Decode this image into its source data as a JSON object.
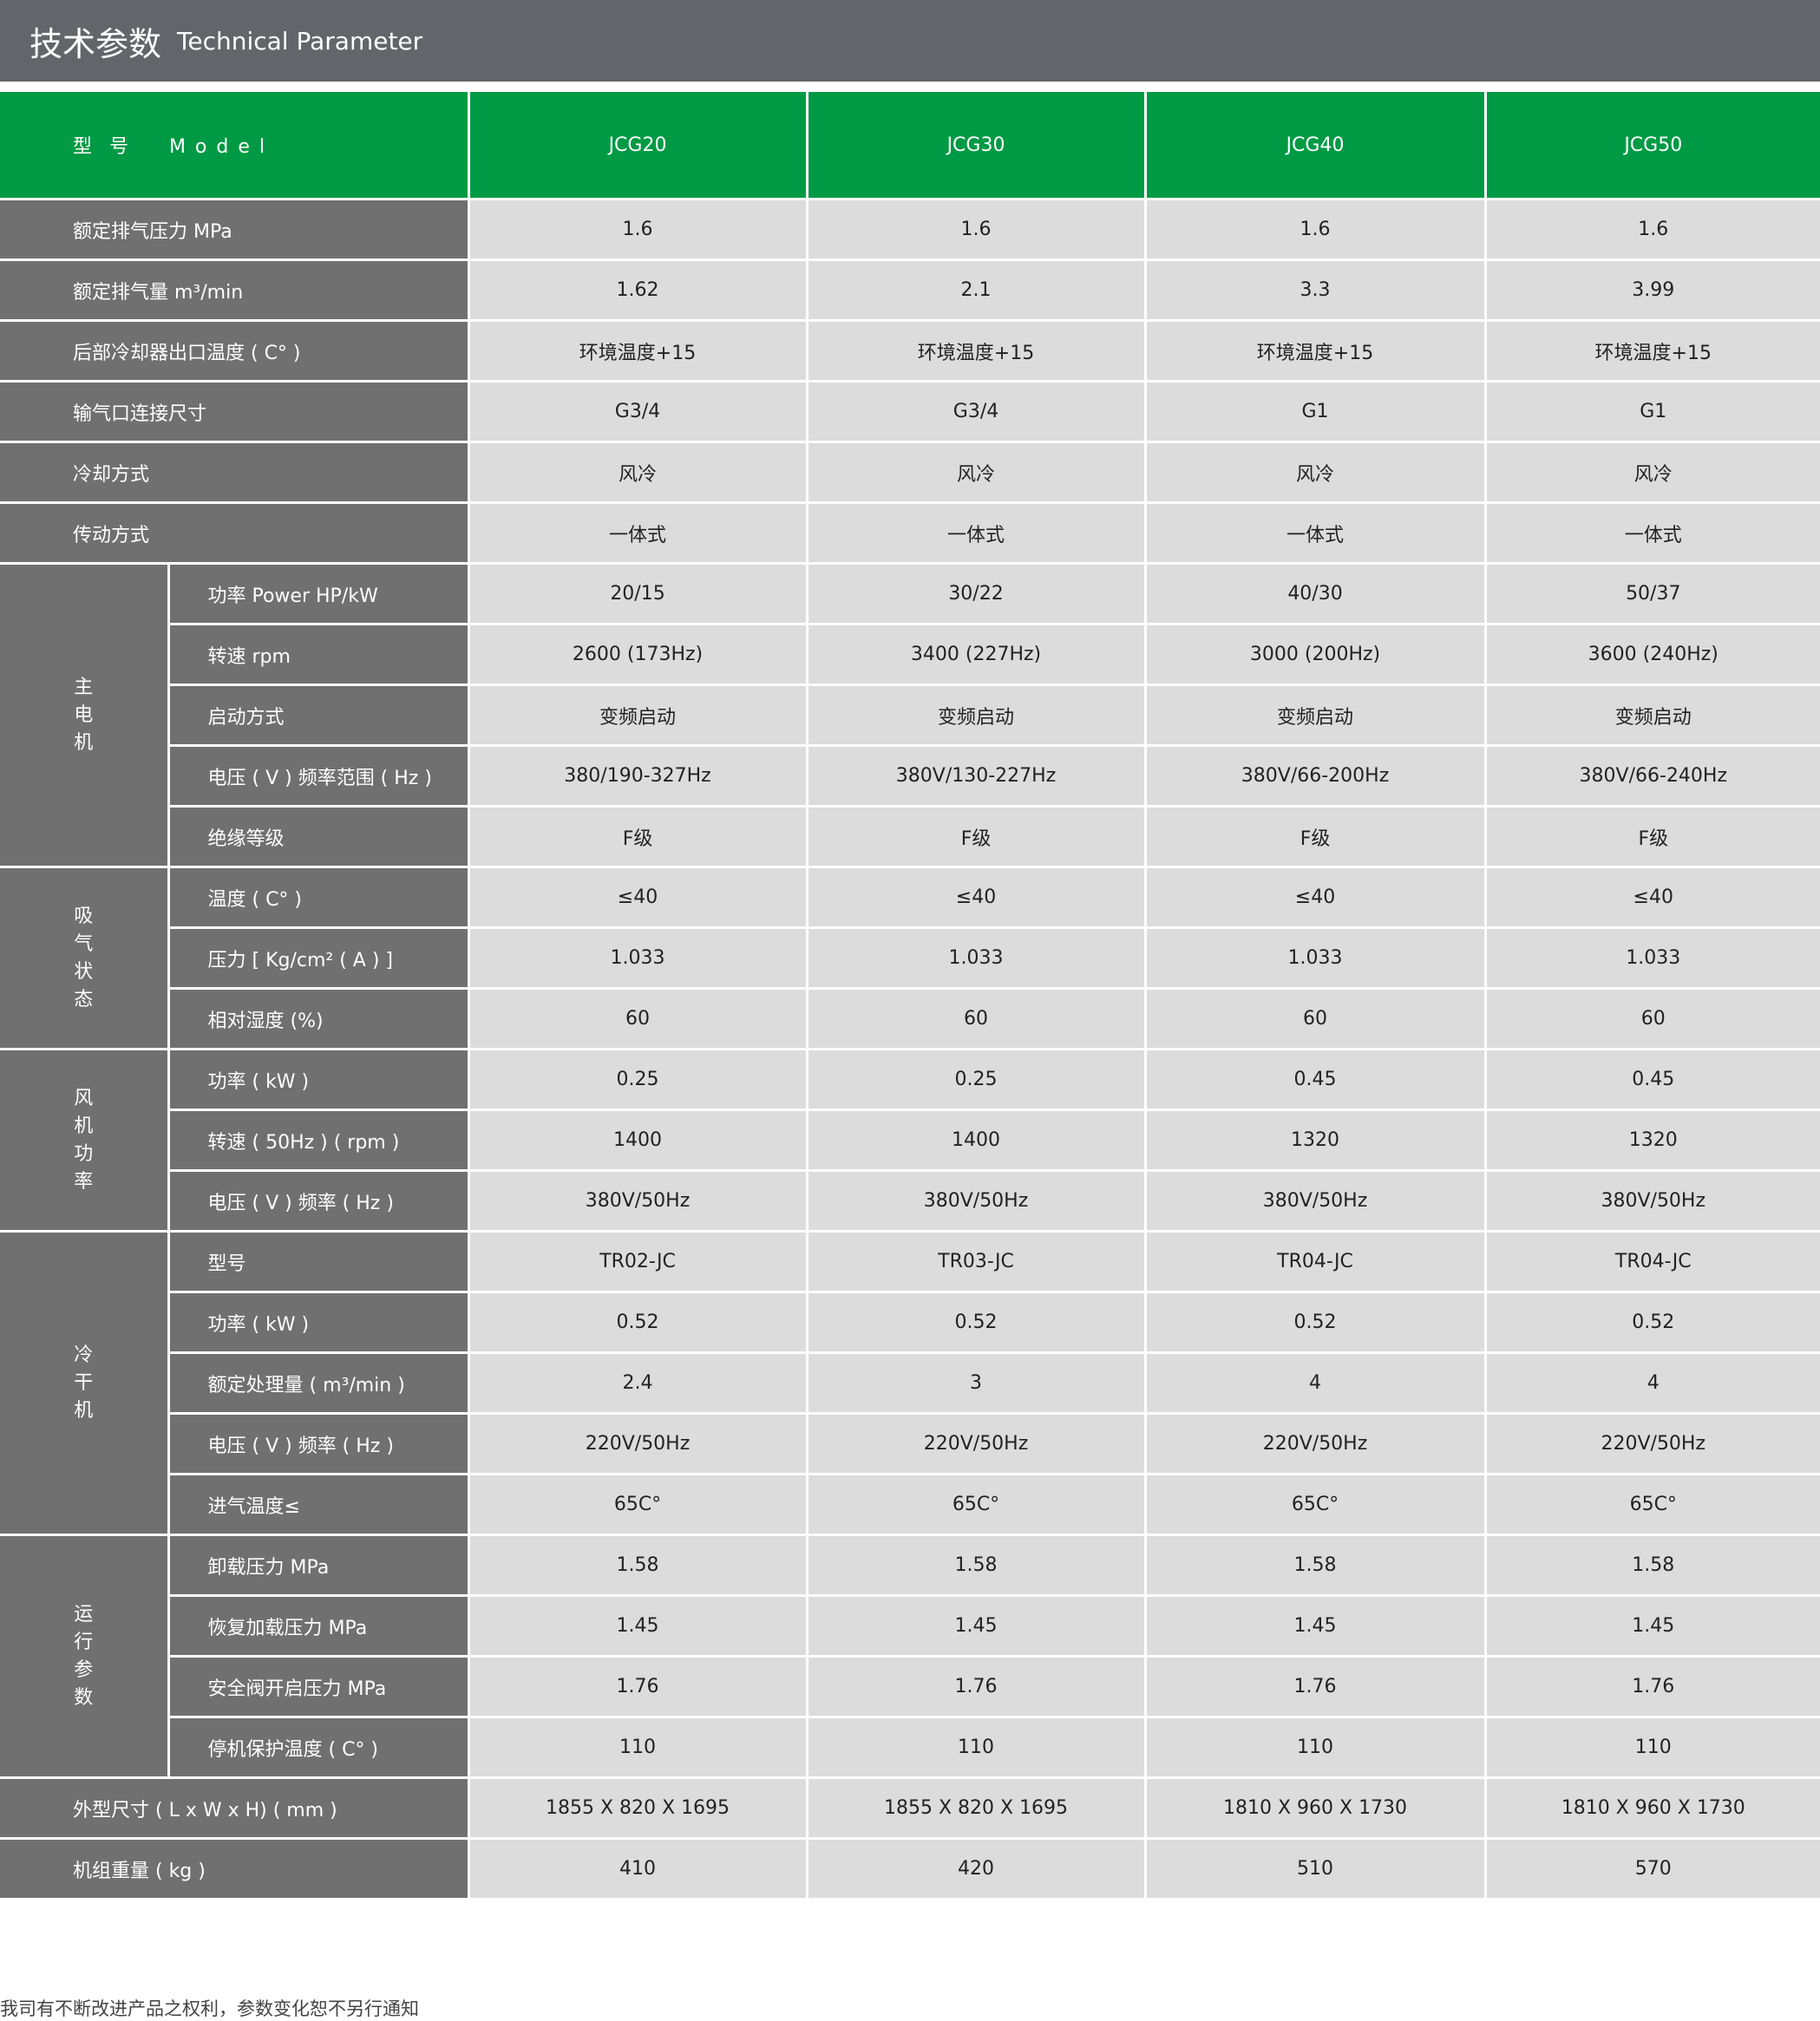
{
  "header": {
    "title_cn": "技术参数",
    "title_en": "Technical Parameter"
  },
  "table": {
    "model_label": "型  号     M o d e l",
    "models": [
      "JCG20",
      "JCG30",
      "JCG40",
      "JCG50"
    ],
    "sections": [
      {
        "label": "额定排气压力  MPa",
        "values": [
          "1.6",
          "1.6",
          "1.6",
          "1.6"
        ]
      },
      {
        "label": "额定排气量  m³/min",
        "values": [
          "1.62",
          "2.1",
          "3.3",
          "3.99"
        ]
      },
      {
        "label": "后部冷却器出口温度 ( C° )",
        "values": [
          "环境温度+15",
          "环境温度+15",
          "环境温度+15",
          "环境温度+15"
        ]
      },
      {
        "label": "输气口连接尺寸",
        "values": [
          "G3/4",
          "G3/4",
          "G1",
          "G1"
        ]
      },
      {
        "label": "冷却方式",
        "values": [
          "风冷",
          "风冷",
          "风冷",
          "风冷"
        ]
      },
      {
        "label": "传动方式",
        "values": [
          "一体式",
          "一体式",
          "一体式",
          "一体式"
        ]
      },
      {
        "group": "主电机",
        "rows": [
          {
            "label": "功率  Power    HP/kW",
            "values": [
              "20/15",
              "30/22",
              "40/30",
              "50/37"
            ]
          },
          {
            "label": "转速   rpm",
            "values": [
              "2600 (173Hz)",
              "3400 (227Hz)",
              "3000 (200Hz)",
              "3600 (240Hz)"
            ]
          },
          {
            "label": "启动方式",
            "values": [
              "变频启动",
              "变频启动",
              "变频启动",
              "变频启动"
            ]
          },
          {
            "label": "电压 ( V ) 频率范围 ( Hz )",
            "values": [
              "380/190-327Hz",
              "380V/130-227Hz",
              "380V/66-200Hz",
              "380V/66-240Hz"
            ]
          },
          {
            "label": "绝缘等级",
            "values": [
              "F级",
              "F级",
              "F级",
              "F级"
            ]
          }
        ]
      },
      {
        "group": "吸气状态",
        "rows": [
          {
            "label": "温度 ( C° )",
            "values": [
              "≤40",
              "≤40",
              "≤40",
              "≤40"
            ]
          },
          {
            "label": "压力 [ Kg/cm² ( A ) ]",
            "values": [
              "1.033",
              "1.033",
              "1.033",
              "1.033"
            ]
          },
          {
            "label": "相对湿度    (%)",
            "values": [
              "60",
              "60",
              "60",
              "60"
            ]
          }
        ]
      },
      {
        "group": "风机功率",
        "rows": [
          {
            "label": "功率 ( kW )",
            "values": [
              "0.25",
              "0.25",
              "0.45",
              "0.45"
            ]
          },
          {
            "label": "转速 ( 50Hz ) ( rpm )",
            "values": [
              "1400",
              "1400",
              "1320",
              "1320"
            ]
          },
          {
            "label": "电压 ( V ) 频率 ( Hz )",
            "values": [
              "380V/50Hz",
              "380V/50Hz",
              "380V/50Hz",
              "380V/50Hz"
            ]
          }
        ]
      },
      {
        "group": "冷干机",
        "rows": [
          {
            "label": "型号",
            "values": [
              "TR02-JC",
              "TR03-JC",
              "TR04-JC",
              "TR04-JC"
            ]
          },
          {
            "label": "功率 ( kW )",
            "values": [
              "0.52",
              "0.52",
              "0.52",
              "0.52"
            ]
          },
          {
            "label": "额定处理量 ( m³/min )",
            "values": [
              "2.4",
              "3",
              "4",
              "4"
            ]
          },
          {
            "label": "电压 ( V ) 频率 ( Hz )",
            "values": [
              "220V/50Hz",
              "220V/50Hz",
              "220V/50Hz",
              "220V/50Hz"
            ]
          },
          {
            "label": "进气温度≤",
            "values": [
              "65C°",
              "65C°",
              "65C°",
              "65C°"
            ]
          }
        ]
      },
      {
        "group": "运行参数",
        "rows": [
          {
            "label": "卸载压力   MPa",
            "values": [
              "1.58",
              "1.58",
              "1.58",
              "1.58"
            ]
          },
          {
            "label": "恢复加载压力   MPa",
            "values": [
              "1.45",
              "1.45",
              "1.45",
              "1.45"
            ]
          },
          {
            "label": "安全阀开启压力   MPa",
            "values": [
              "1.76",
              "1.76",
              "1.76",
              "1.76"
            ]
          },
          {
            "label": "停机保护温度    ( C° )",
            "values": [
              "110",
              "110",
              "110",
              "110"
            ]
          }
        ]
      },
      {
        "label": "外型尺寸 ( L x W x H)  ( mm )",
        "values": [
          "1855 X 820 X 1695",
          "1855 X 820 X 1695",
          "1810 X 960 X 1730",
          "1810 X 960 X 1730"
        ]
      },
      {
        "label": "机组重量   ( kg )",
        "values": [
          "410",
          "420",
          "510",
          "570"
        ]
      }
    ]
  },
  "footnote": "我司有不断改进产品之权利，参数变化恕不另行通知",
  "colors": {
    "header_bar": "#64656a",
    "model_row": "#009a44",
    "label_cell": "#707070",
    "value_cell": "#dcdcdc"
  }
}
